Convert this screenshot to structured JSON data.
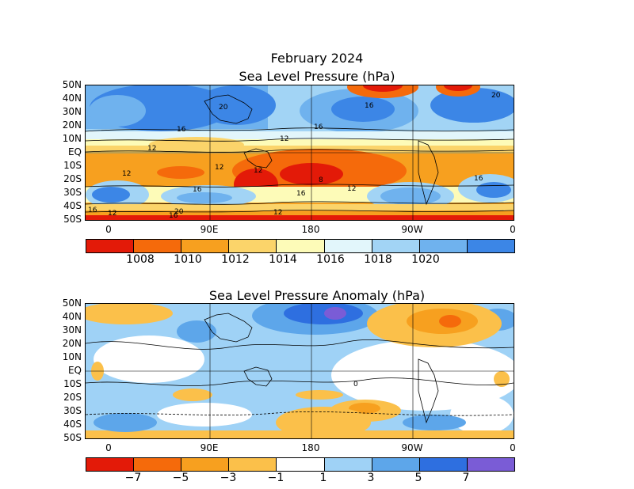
{
  "top_panel": {
    "title_line1": "February 2024",
    "title_line2": "Sea Level Pressure (hPa)",
    "contour_labels": [
      "20",
      "16",
      "12",
      "16",
      "12",
      "12",
      "12",
      "16",
      "8",
      "12",
      "16",
      "12",
      "16",
      "12",
      "16",
      "20",
      "16",
      "12",
      "16",
      "20"
    ],
    "colorbar": {
      "colors": [
        "#e31a08",
        "#f56a0b",
        "#f7a01f",
        "#fbd46a",
        "#fdfbb8",
        "#e2f6fb",
        "#a2d4f5",
        "#6fb2ee",
        "#3c86e6"
      ],
      "labels": [
        "1008",
        "1010",
        "1012",
        "1014",
        "1016",
        "1018",
        "1020"
      ]
    }
  },
  "bottom_panel": {
    "title": "Sea Level Pressure Anomaly (hPa)",
    "contour_labels": [
      "0"
    ],
    "colorbar": {
      "colors": [
        "#e31a08",
        "#f56a0b",
        "#f7a01f",
        "#fbc04a",
        "#ffffff",
        "#9fd2f6",
        "#5da6ea",
        "#2e6fe0",
        "#7a5cd6"
      ],
      "labels": [
        "−7",
        "−5",
        "−3",
        "−1",
        "1",
        "3",
        "5",
        "7"
      ]
    }
  },
  "axes": {
    "lat_labels": [
      "50N",
      "40N",
      "30N",
      "20N",
      "10N",
      "EQ",
      "10S",
      "20S",
      "30S",
      "40S",
      "50S"
    ],
    "lon_labels": [
      "0",
      "90E",
      "180",
      "90W",
      "0"
    ]
  }
}
